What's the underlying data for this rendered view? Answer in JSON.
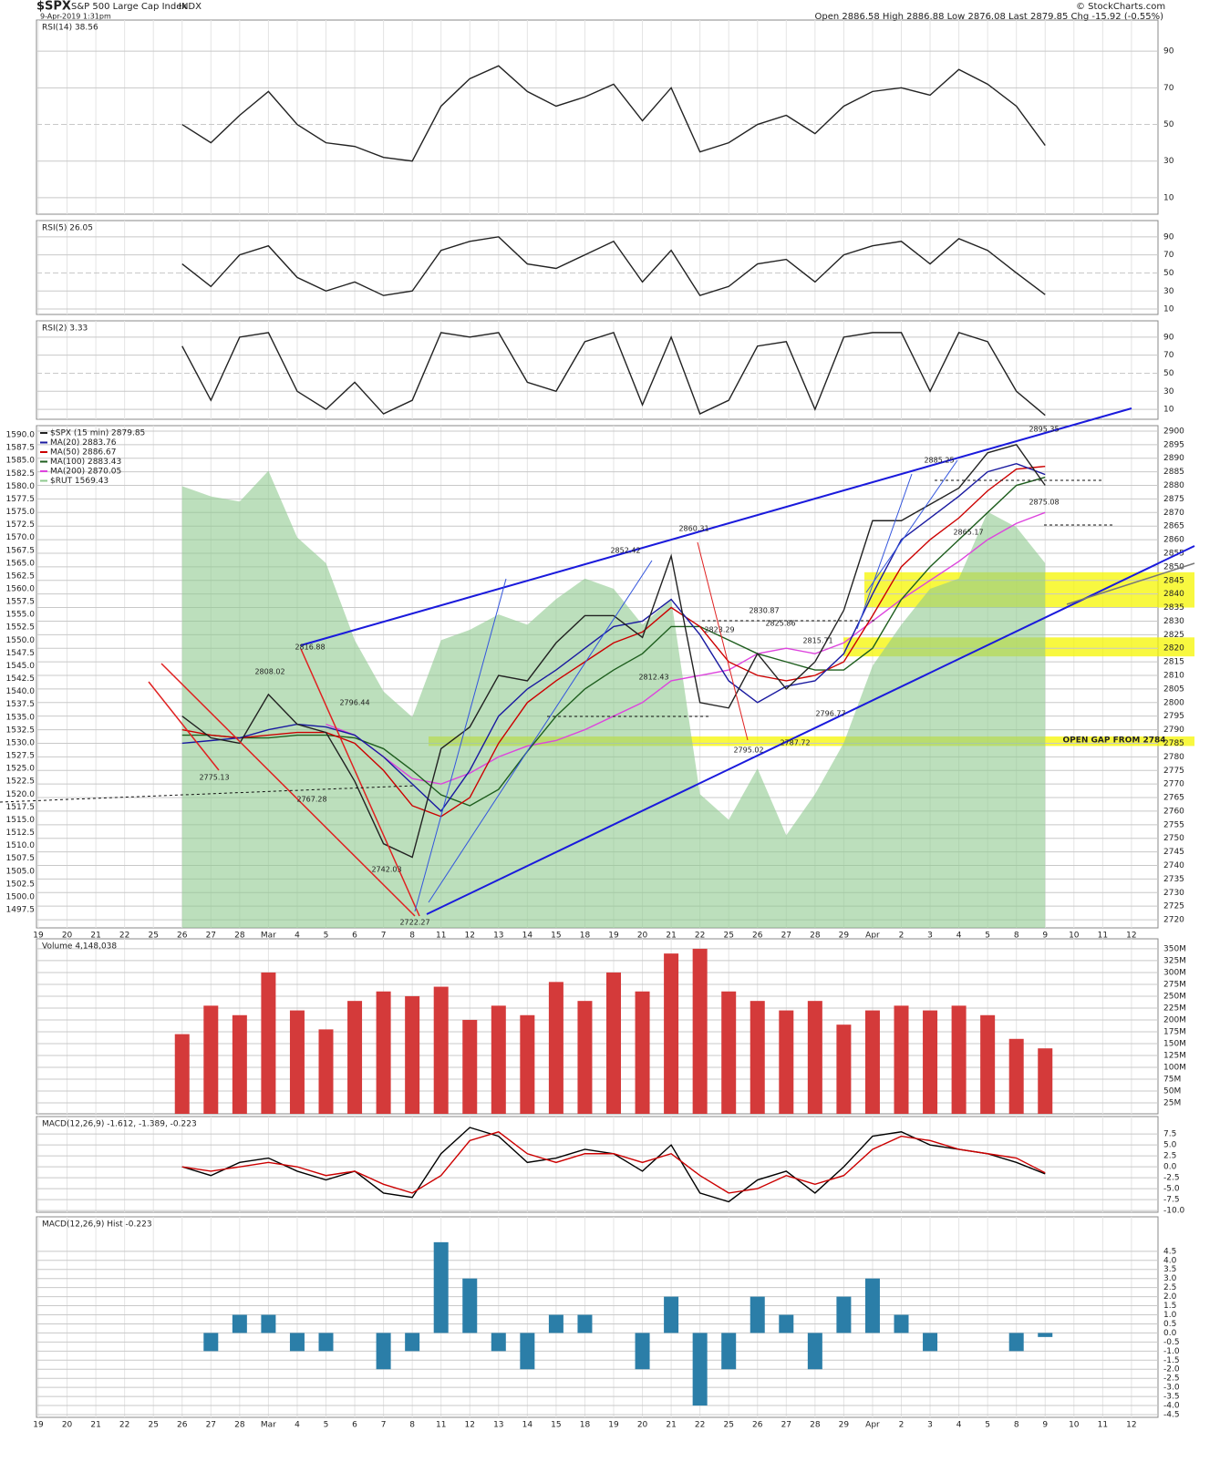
{
  "header": {
    "symbol": "$SPX",
    "name": "S&P 500 Large Cap Index",
    "exchange": "INDX",
    "datetime": "9-Apr-2019 1:31pm",
    "quote": "Open 2886.58 High 2886.88 Low 2876.08 Last 2879.85 Chg -15.92 (-0.55%)",
    "copyright": "© StockCharts.com"
  },
  "chart_data": [
    {
      "type": "line",
      "title": "RSI(14) 38.56",
      "ylim": [
        1,
        107
      ],
      "yticks": [
        10,
        30,
        50,
        70,
        90
      ],
      "grid": true,
      "color": "#222222",
      "values": [
        null,
        null,
        null,
        null,
        null,
        50,
        40,
        55,
        68,
        50,
        40,
        38,
        32,
        30,
        60,
        75,
        82,
        68,
        60,
        65,
        72,
        52,
        70,
        35,
        40,
        50,
        55,
        45,
        60,
        68,
        70,
        66,
        80,
        72,
        60,
        38.56,
        null,
        null,
        null
      ]
    },
    {
      "type": "line",
      "title": "RSI(5) 26.05",
      "ylim": [
        4,
        108
      ],
      "yticks": [
        10,
        30,
        50,
        70,
        90
      ],
      "grid": true,
      "color": "#222222",
      "values": [
        null,
        null,
        null,
        null,
        null,
        60,
        35,
        70,
        80,
        45,
        30,
        40,
        25,
        30,
        75,
        85,
        90,
        60,
        55,
        70,
        85,
        40,
        75,
        25,
        35,
        60,
        65,
        40,
        70,
        80,
        85,
        60,
        88,
        75,
        50,
        26.05,
        null,
        null,
        null
      ]
    },
    {
      "type": "line",
      "title": "RSI(2) 3.33",
      "ylim": [
        -1,
        108
      ],
      "yticks": [
        10,
        30,
        50,
        70,
        90
      ],
      "grid": true,
      "color": "#222222",
      "values": [
        null,
        null,
        null,
        null,
        null,
        80,
        20,
        90,
        95,
        30,
        10,
        40,
        5,
        20,
        95,
        90,
        95,
        40,
        30,
        85,
        95,
        15,
        90,
        5,
        20,
        80,
        85,
        10,
        90,
        95,
        95,
        30,
        95,
        85,
        30,
        3.33,
        null,
        null,
        null
      ]
    },
    {
      "type": "line",
      "grid": true,
      "categories": [
        "19",
        "20",
        "21",
        "22",
        "25",
        "26",
        "27",
        "28",
        "Mar",
        "4",
        "5",
        "6",
        "7",
        "8",
        "11",
        "12",
        "13",
        "14",
        "15",
        "18",
        "19",
        "20",
        "21",
        "22",
        "25",
        "26",
        "27",
        "28",
        "29",
        "Apr",
        "2",
        "3",
        "4",
        "5",
        "8",
        "9",
        "10",
        "11",
        "12"
      ],
      "ylim": [
        2717,
        2902
      ],
      "yticks": [
        2720,
        2725,
        2730,
        2735,
        2740,
        2745,
        2750,
        2755,
        2760,
        2765,
        2770,
        2775,
        2780,
        2785,
        2790,
        2795,
        2800,
        2805,
        2810,
        2815,
        2820,
        2825,
        2830,
        2835,
        2840,
        2845,
        2850,
        2855,
        2860,
        2865,
        2870,
        2875,
        2880,
        2885,
        2890,
        2895,
        2900
      ],
      "y2lim": [
        1493.95,
        1591.78
      ],
      "y2ticks": [
        1497.5,
        {
          "value": 1500,
          "label": "1500.0"
        },
        1502.5,
        {
          "value": 1505,
          "label": "1505.0"
        },
        1507.5,
        {
          "value": 1510,
          "label": "1510.0"
        },
        1512.5,
        {
          "value": 1515,
          "label": "1515.0"
        },
        1517.5,
        {
          "value": 1520,
          "label": "1520.0"
        },
        1522.5,
        {
          "value": 1525,
          "label": "1525.0"
        },
        1527.5,
        {
          "value": 1530,
          "label": "1530.0"
        },
        1532.5,
        {
          "value": 1535,
          "label": "1535.0"
        },
        1537.5,
        {
          "value": 1540,
          "label": "1540.0"
        },
        1542.5,
        {
          "value": 1545,
          "label": "1545.0"
        },
        1547.5,
        {
          "value": 1550,
          "label": "1550.0"
        },
        1552.5,
        {
          "value": 1555,
          "label": "1555.0"
        },
        1557.5,
        {
          "value": 1560,
          "label": "1560.0"
        },
        1562.5,
        {
          "value": 1565,
          "label": "1565.0"
        },
        1567.5,
        {
          "value": 1570,
          "label": "1570.0"
        },
        1572.5,
        {
          "value": 1575,
          "label": "1575.0"
        },
        1577.5,
        {
          "value": 1580,
          "label": "1580.0"
        },
        1582.5,
        {
          "value": 1585,
          "label": "1585.0"
        },
        1587.5,
        {
          "value": 1590,
          "label": "1590.0"
        }
      ],
      "bands": [
        [
          2784,
          2787.5
        ],
        [
          2817,
          2824
        ],
        [
          2835,
          2848
        ]
      ],
      "band_color": "#f5f500",
      "series": [
        {
          "name": "$RUT 1569.43",
          "type": "area",
          "axis": "y2",
          "color": "#8fc98f",
          "values": [
            null,
            null,
            null,
            null,
            null,
            1580,
            1578,
            1577,
            1583,
            1570,
            1565,
            1550,
            1540,
            1535,
            1550,
            1552,
            1555,
            1553,
            1558,
            1562,
            1560,
            1553,
            1558,
            1520,
            1515,
            1525,
            1512,
            1520,
            1530,
            1545,
            1553,
            1560,
            1562,
            1575,
            1572,
            1565,
            null,
            null,
            null
          ]
        },
        {
          "name": "MA(200) 2870.05",
          "color": "#dd44dd",
          "values": [
            null,
            null,
            null,
            null,
            null,
            null,
            null,
            null,
            null,
            null,
            2792,
            2788,
            2780,
            2772,
            2770,
            2774,
            2780,
            2784,
            2786,
            2790,
            2795,
            2800,
            2808,
            2810,
            2812,
            2818,
            2820,
            2818,
            2822,
            2830,
            2838,
            2845,
            2852,
            2860,
            2866,
            2870,
            null,
            null,
            null
          ]
        },
        {
          "name": "MA(100) 2883.43",
          "color": "#1e5e1e",
          "values": [
            null,
            null,
            null,
            null,
            null,
            2788,
            2788,
            2787,
            2787,
            2788,
            2788,
            2787,
            2783,
            2775,
            2766,
            2762,
            2768,
            2782,
            2795,
            2805,
            2812,
            2818,
            2828,
            2828,
            2823,
            2818,
            2815,
            2812,
            2812,
            2820,
            2838,
            2850,
            2860,
            2870,
            2880,
            2883,
            null,
            null,
            null
          ]
        },
        {
          "name": "MA(50) 2886.67",
          "color": "#cc0000",
          "values": [
            null,
            null,
            null,
            null,
            null,
            2790,
            2788,
            2787,
            2788,
            2789,
            2789,
            2785,
            2775,
            2762,
            2758,
            2765,
            2785,
            2800,
            2808,
            2815,
            2822,
            2826,
            2835,
            2828,
            2815,
            2810,
            2808,
            2810,
            2815,
            2832,
            2850,
            2860,
            2868,
            2878,
            2886,
            2887,
            null,
            null,
            null
          ]
        },
        {
          "name": "MA(20) 2883.76",
          "color": "#1a1aa0",
          "values": [
            null,
            null,
            null,
            null,
            null,
            2785,
            2786,
            2787,
            2790,
            2792,
            2791,
            2788,
            2780,
            2770,
            2760,
            2775,
            2795,
            2805,
            2812,
            2820,
            2828,
            2830,
            2838,
            2825,
            2808,
            2800,
            2806,
            2808,
            2818,
            2840,
            2860,
            2868,
            2876,
            2885,
            2888,
            2884,
            null,
            null,
            null
          ]
        },
        {
          "name": "$SPX (15 min) 2879.85",
          "color": "#222222",
          "values": [
            null,
            null,
            null,
            null,
            null,
            2795,
            2787,
            2785,
            2803,
            2792,
            2789,
            2771,
            2748,
            2743,
            2783,
            2791,
            2810,
            2808,
            2822,
            2832,
            2832,
            2824,
            2854,
            2800,
            2798,
            2818,
            2805,
            2815,
            2834,
            2867,
            2867,
            2873,
            2879,
            2892,
            2895,
            2880,
            null,
            null,
            null
          ]
        }
      ],
      "annotations": [
        "2816.88",
        "2808.02",
        "2796.44",
        "2775.13",
        "2767.28",
        "2742.03",
        "2722.27",
        "2852.42",
        "2860.31",
        "2812.43",
        "2830.87",
        "2823.29",
        "2825.86",
        "2815.71",
        "2795.02",
        "2787.72",
        "2796.77",
        "2885.25",
        "2865.17",
        "2875.08",
        "2895.35",
        "OPEN GAP FROM 2784"
      ]
    },
    {
      "type": "bar",
      "title": "Volume 4,148,038",
      "color": "#d43a3a",
      "grid": true,
      "ylim": [
        2000000,
        371000000
      ],
      "yticks": [
        {
          "value": 25000000,
          "label": "25M"
        },
        {
          "value": 50000000,
          "label": "50M"
        },
        {
          "value": 75000000,
          "label": "75M"
        },
        {
          "value": 100000000,
          "label": "100M"
        },
        {
          "value": 125000000,
          "label": "125M"
        },
        {
          "value": 150000000,
          "label": "150M"
        },
        {
          "value": 175000000,
          "label": "175M"
        },
        {
          "value": 200000000,
          "label": "200M"
        },
        {
          "value": 225000000,
          "label": "225M"
        },
        {
          "value": 250000000,
          "label": "250M"
        },
        {
          "value": 275000000,
          "label": "275M"
        },
        {
          "value": 300000000,
          "label": "300M"
        },
        {
          "value": 325000000,
          "label": "325M"
        },
        {
          "value": 350000000,
          "label": "350M"
        }
      ],
      "values": [
        null,
        null,
        null,
        null,
        null,
        170000000,
        230000000,
        210000000,
        300000000,
        220000000,
        180000000,
        240000000,
        260000000,
        250000000,
        270000000,
        200000000,
        230000000,
        210000000,
        280000000,
        240000000,
        300000000,
        260000000,
        340000000,
        350000000,
        260000000,
        240000000,
        220000000,
        240000000,
        190000000,
        220000000,
        230000000,
        220000000,
        230000000,
        210000000,
        160000000,
        140000000,
        null,
        null,
        null
      ]
    },
    {
      "type": "line",
      "title": "MACD(12,26,9) -1.612, -1.389, -0.223",
      "grid": true,
      "ylim": [
        -10.4,
        11.5
      ],
      "yticks": [
        {
          "value": -10,
          "label": "-10.0"
        },
        -7.5,
        {
          "value": -5,
          "label": "-5.0"
        },
        -2.5,
        {
          "value": 0,
          "label": "0.0"
        },
        2.5,
        {
          "value": 5,
          "label": "5.0"
        },
        7.5
      ],
      "series": [
        {
          "color": "#000000",
          "values": [
            null,
            null,
            null,
            null,
            null,
            0,
            -2,
            1,
            2,
            -1,
            -3,
            -1,
            -6,
            -7,
            3,
            9,
            7,
            1,
            2,
            4,
            3,
            -1,
            5,
            -6,
            -8,
            -3,
            -1,
            -6,
            0,
            7,
            8,
            5,
            4,
            3,
            1,
            -1.612,
            null,
            null,
            null
          ]
        },
        {
          "color": "#cc0000",
          "values": [
            null,
            null,
            null,
            null,
            null,
            0,
            -1,
            0,
            1,
            0,
            -2,
            -1,
            -4,
            -6,
            -2,
            6,
            8,
            3,
            1,
            3,
            3,
            1,
            3,
            -2,
            -6,
            -5,
            -2,
            -4,
            -2,
            4,
            7,
            6,
            4,
            3,
            2,
            -1.389,
            null,
            null,
            null
          ]
        }
      ]
    },
    {
      "type": "bar",
      "title": "MACD(12,26,9) Hist -0.223",
      "color": "#2b7ea8",
      "grid": true,
      "ylim": [
        -4.65,
        6.4
      ],
      "categories": [
        "19",
        "20",
        "21",
        "22",
        "25",
        "26",
        "27",
        "28",
        "Mar",
        "4",
        "5",
        "6",
        "7",
        "8",
        "11",
        "12",
        "13",
        "14",
        "15",
        "18",
        "19",
        "20",
        "21",
        "22",
        "25",
        "26",
        "27",
        "28",
        "29",
        "Apr",
        "2",
        "3",
        "4",
        "5",
        "8",
        "9",
        "10",
        "11",
        "12"
      ],
      "yticks": [
        -4.5,
        {
          "value": -4,
          "label": "-4.0"
        },
        -3.5,
        {
          "value": -3,
          "label": "-3.0"
        },
        -2.5,
        {
          "value": -2,
          "label": "-2.0"
        },
        -1.5,
        {
          "value": -1,
          "label": "-1.0"
        },
        -0.5,
        {
          "value": 0,
          "label": "0.0"
        },
        0.5,
        {
          "value": 1,
          "label": "1.0"
        },
        1.5,
        {
          "value": 2,
          "label": "2.0"
        },
        2.5,
        {
          "value": 3,
          "label": "3.0"
        },
        3.5,
        {
          "value": 4,
          "label": "4.0"
        },
        4.5
      ],
      "values": [
        null,
        null,
        null,
        null,
        null,
        0,
        -1,
        1,
        1,
        -1,
        -1,
        0,
        -2,
        -1,
        5,
        3,
        -1,
        -2,
        1,
        1,
        0,
        -2,
        2,
        -4,
        -2,
        2,
        1,
        -2,
        2,
        3,
        1,
        -1,
        0,
        0,
        -1,
        -0.223,
        null,
        null,
        null
      ]
    }
  ]
}
